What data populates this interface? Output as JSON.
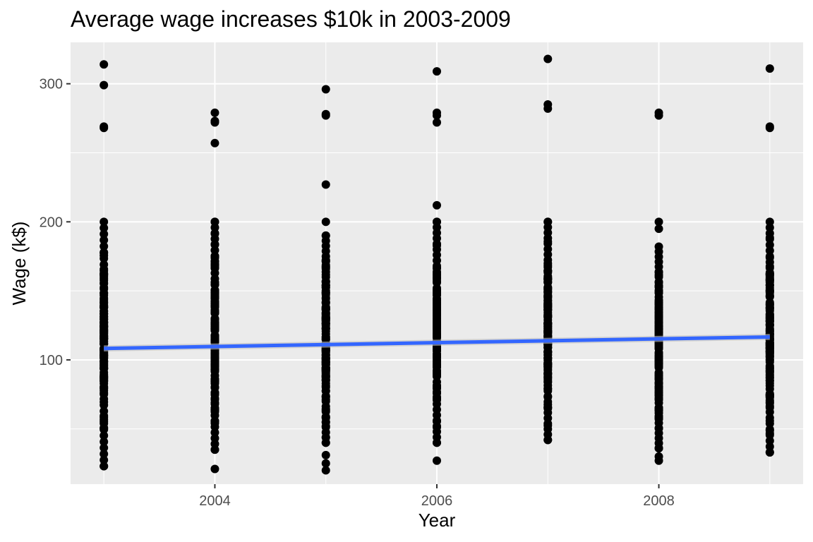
{
  "chart_data": {
    "type": "scatter",
    "title": "Average wage increases $10k in 2003-2009",
    "xlabel": "Year",
    "ylabel": "Wage (k$)",
    "xlim": [
      2002.7,
      2009.3
    ],
    "ylim": [
      10,
      330
    ],
    "x_ticks": [
      2004,
      2006,
      2008
    ],
    "y_ticks": [
      100,
      200,
      300
    ],
    "grid": true,
    "background": "#ebebeb",
    "point_color": "#000000",
    "trend_line": {
      "color": "#3366ff",
      "band_color": "#bfbfbf",
      "points": [
        [
          2003,
          108.3
        ],
        [
          2009,
          116.6
        ]
      ]
    },
    "columns": [
      {
        "year": 2003,
        "range": [
          23,
          200
        ],
        "outliers": [
          314,
          299,
          269,
          268
        ]
      },
      {
        "year": 2004,
        "range": [
          35,
          200
        ],
        "outliers": [
          21,
          279,
          273,
          272,
          257
        ]
      },
      {
        "year": 2005,
        "range": [
          40,
          190
        ],
        "outliers": [
          20,
          25,
          31,
          200,
          227,
          277,
          278,
          296
        ]
      },
      {
        "year": 2006,
        "range": [
          40,
          200
        ],
        "outliers": [
          27,
          212,
          272,
          277,
          279,
          309
        ]
      },
      {
        "year": 2007,
        "range": [
          42,
          200
        ],
        "outliers": [
          282,
          285,
          318
        ]
      },
      {
        "year": 2008,
        "range": [
          36,
          182
        ],
        "outliers": [
          27,
          30,
          195,
          200,
          277,
          279
        ]
      },
      {
        "year": 2009,
        "range": [
          33,
          200
        ],
        "outliers": [
          268,
          269,
          311
        ]
      }
    ]
  }
}
